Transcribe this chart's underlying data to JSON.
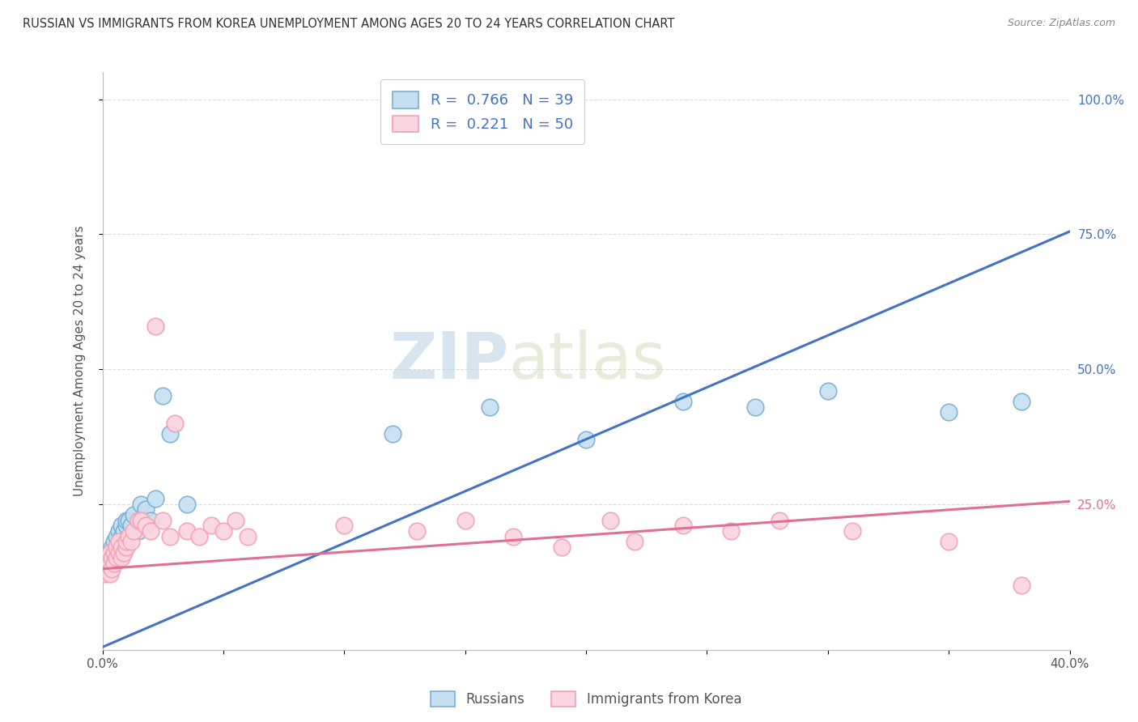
{
  "title": "RUSSIAN VS IMMIGRANTS FROM KOREA UNEMPLOYMENT AMONG AGES 20 TO 24 YEARS CORRELATION CHART",
  "source": "Source: ZipAtlas.com",
  "ylabel": "Unemployment Among Ages 20 to 24 years",
  "xlim": [
    0,
    0.4
  ],
  "ylim": [
    -0.02,
    1.05
  ],
  "russian_color": "#7bafd4",
  "russian_face": "#c5dff0",
  "korean_color": "#f4a0b5",
  "korean_face": "#fad4de",
  "russian_R": 0.766,
  "russian_N": 39,
  "korean_R": 0.221,
  "korean_N": 50,
  "legend_russians": "Russians",
  "legend_koreans": "Immigrants from Korea",
  "watermark_zip": "ZIP",
  "watermark_atlas": "atlas",
  "blue_line_x": [
    0.0,
    0.4
  ],
  "blue_line_y": [
    -0.015,
    0.755
  ],
  "pink_line_x": [
    0.0,
    0.4
  ],
  "pink_line_y": [
    0.13,
    0.255
  ],
  "background_color": "#ffffff",
  "grid_color": "#dddddd",
  "title_color": "#333333",
  "axis_label_color": "#555555",
  "right_tick_colors": [
    "#4472c4",
    "#4472c4",
    "#4472c4",
    "#4472c4"
  ],
  "right_tick_25_color": "#e07090",
  "legend_value_color": "#4472c4",
  "legend_label_color": "#333333",
  "russian_scatter_x": [
    0.001,
    0.001,
    0.002,
    0.002,
    0.002,
    0.003,
    0.003,
    0.003,
    0.004,
    0.004,
    0.005,
    0.005,
    0.006,
    0.006,
    0.007,
    0.008,
    0.008,
    0.009,
    0.01,
    0.01,
    0.011,
    0.012,
    0.013,
    0.015,
    0.016,
    0.018,
    0.02,
    0.022,
    0.025,
    0.028,
    0.035,
    0.12,
    0.16,
    0.2,
    0.24,
    0.27,
    0.3,
    0.35,
    0.38
  ],
  "russian_scatter_y": [
    0.13,
    0.14,
    0.13,
    0.15,
    0.14,
    0.16,
    0.15,
    0.14,
    0.17,
    0.15,
    0.16,
    0.18,
    0.17,
    0.19,
    0.2,
    0.19,
    0.21,
    0.2,
    0.21,
    0.22,
    0.22,
    0.21,
    0.23,
    0.2,
    0.25,
    0.24,
    0.22,
    0.26,
    0.45,
    0.38,
    0.25,
    0.38,
    0.43,
    0.37,
    0.44,
    0.43,
    0.46,
    0.42,
    0.44
  ],
  "korean_scatter_x": [
    0.001,
    0.001,
    0.002,
    0.002,
    0.003,
    0.003,
    0.003,
    0.004,
    0.004,
    0.005,
    0.005,
    0.006,
    0.006,
    0.007,
    0.007,
    0.008,
    0.008,
    0.009,
    0.01,
    0.01,
    0.011,
    0.012,
    0.013,
    0.015,
    0.016,
    0.018,
    0.02,
    0.022,
    0.025,
    0.028,
    0.03,
    0.035,
    0.04,
    0.045,
    0.05,
    0.055,
    0.06,
    0.1,
    0.13,
    0.15,
    0.17,
    0.19,
    0.21,
    0.22,
    0.24,
    0.26,
    0.28,
    0.31,
    0.35,
    0.38
  ],
  "korean_scatter_y": [
    0.12,
    0.14,
    0.13,
    0.15,
    0.12,
    0.16,
    0.14,
    0.13,
    0.15,
    0.14,
    0.16,
    0.15,
    0.17,
    0.16,
    0.18,
    0.15,
    0.17,
    0.16,
    0.17,
    0.18,
    0.19,
    0.18,
    0.2,
    0.22,
    0.22,
    0.21,
    0.2,
    0.58,
    0.22,
    0.19,
    0.4,
    0.2,
    0.19,
    0.21,
    0.2,
    0.22,
    0.19,
    0.21,
    0.2,
    0.22,
    0.19,
    0.17,
    0.22,
    0.18,
    0.21,
    0.2,
    0.22,
    0.2,
    0.18,
    0.1
  ]
}
